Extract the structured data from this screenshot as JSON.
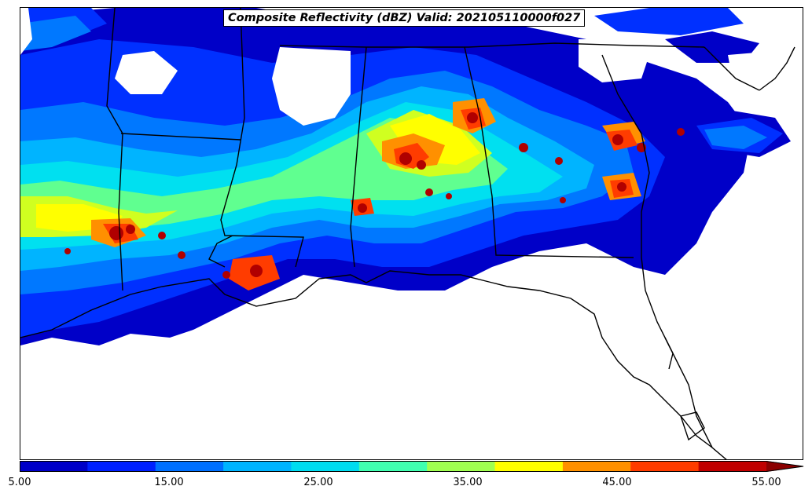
{
  "title": "Composite Reflectivity (dBZ) Valid: 202105110000f027",
  "colorbar": {
    "min": 5,
    "max": 55,
    "step": 5,
    "extend": "max",
    "colors": [
      "#0000c8",
      "#0020ff",
      "#0070ff",
      "#00b4ff",
      "#00dcf0",
      "#40ffb0",
      "#a0ff50",
      "#ffff00",
      "#ff9000",
      "#ff3c00",
      "#c00000",
      "#8b0000"
    ],
    "tick_labels": [
      "5.00",
      "15.00",
      "25.00",
      "35.00",
      "45.00",
      "55.00"
    ],
    "tick_values": [
      5,
      15,
      25,
      35,
      45,
      55
    ]
  }
}
